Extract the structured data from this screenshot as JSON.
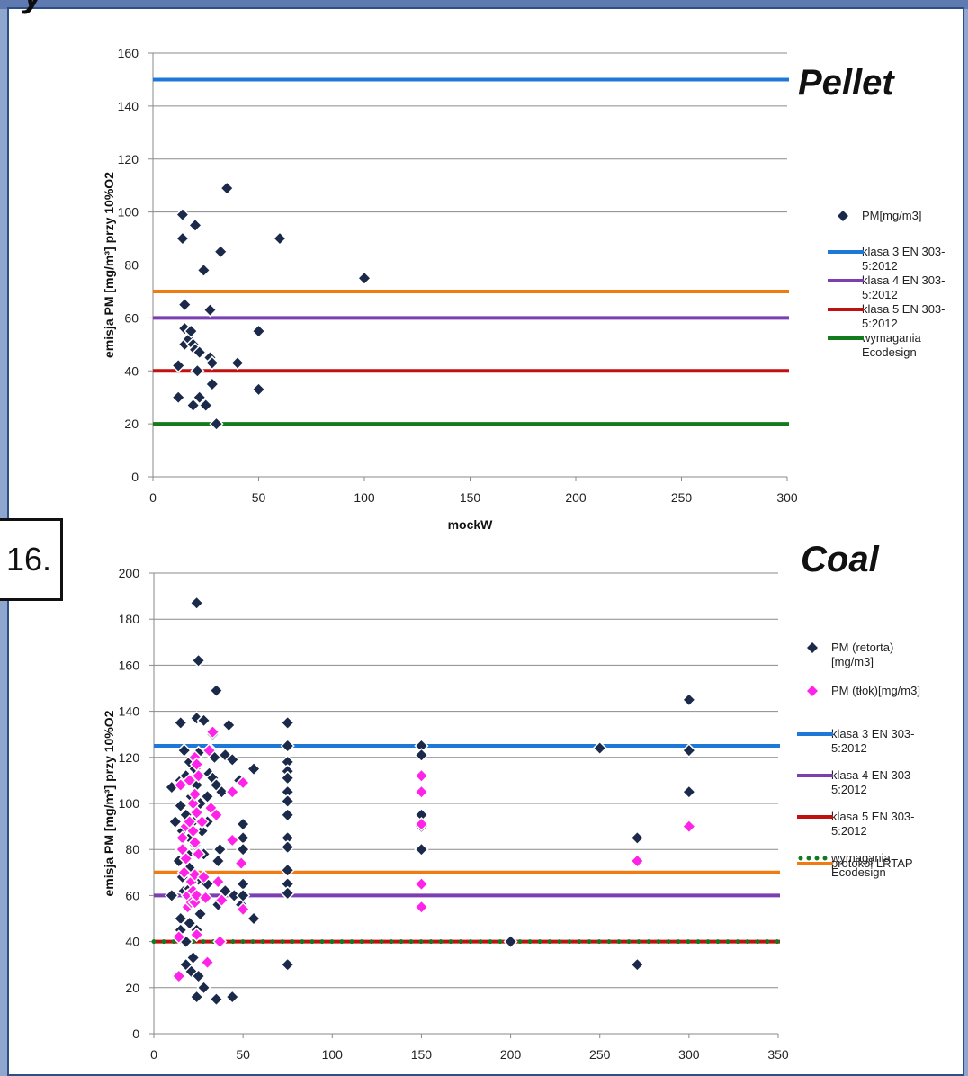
{
  "header": {
    "corner_glyph": "y"
  },
  "slide_number": "16.",
  "chart_data": [
    {
      "type": "scatter",
      "label": "Pellet",
      "title": "",
      "xlabel": "mockW",
      "ylabel": "emisja PM [mg/m³] przy 10%O2",
      "xlim": [
        0,
        300
      ],
      "ylim": [
        0,
        160
      ],
      "xticks": [
        0,
        50,
        100,
        150,
        200,
        250,
        300
      ],
      "yticks": [
        0,
        20,
        40,
        60,
        80,
        100,
        120,
        140,
        160
      ],
      "grid": "horizontal",
      "legend_position": "right",
      "series": [
        {
          "name": "PM[mg/m3]",
          "kind": "points",
          "color": "#1b2a4a",
          "points": [
            [
              12,
              30
            ],
            [
              12,
              42
            ],
            [
              14,
              99
            ],
            [
              14,
              90
            ],
            [
              15,
              56
            ],
            [
              15,
              65
            ],
            [
              15,
              50
            ],
            [
              17,
              52
            ],
            [
              18,
              55
            ],
            [
              19,
              27
            ],
            [
              19,
              50
            ],
            [
              20,
              95
            ],
            [
              20,
              48
            ],
            [
              21,
              40
            ],
            [
              22,
              47
            ],
            [
              22,
              30
            ],
            [
              24,
              78
            ],
            [
              25,
              27
            ],
            [
              27,
              63
            ],
            [
              27,
              45
            ],
            [
              28,
              43
            ],
            [
              28,
              35
            ],
            [
              30,
              20
            ],
            [
              32,
              85
            ],
            [
              35,
              109
            ],
            [
              40,
              43
            ],
            [
              50,
              55
            ],
            [
              50,
              33
            ],
            [
              60,
              90
            ],
            [
              100,
              75
            ]
          ]
        },
        {
          "name": "klasa 3 EN 303-5:2012",
          "kind": "hline",
          "y": 150,
          "color": "#1e78d7"
        },
        {
          "name": "klasa 4 EN 303-5:2012",
          "kind": "hline",
          "y": 60,
          "color": "#7b3fb2"
        },
        {
          "name": "klasa 5 EN 303-5:2012",
          "kind": "hline",
          "y": 40,
          "color": "#c11010"
        },
        {
          "name": "wymagania Ecodesign",
          "kind": "hline",
          "y": 20,
          "color": "#137a1e"
        },
        {
          "name": "",
          "kind": "hline",
          "y": 70,
          "color": "#f07b12"
        }
      ]
    },
    {
      "type": "scatter",
      "label": "Coal",
      "title": "",
      "xlabel": "mockW",
      "ylabel": "emisja PM [mg/m³] przy 10%O2",
      "xlim": [
        0,
        350
      ],
      "ylim": [
        0,
        200
      ],
      "xticks": [
        0,
        50,
        100,
        150,
        200,
        250,
        300,
        350
      ],
      "yticks": [
        0,
        20,
        40,
        60,
        80,
        100,
        120,
        140,
        160,
        180,
        200
      ],
      "grid": "horizontal",
      "legend_position": "right",
      "series": [
        {
          "name": "PM (retorta) [mg/m3]",
          "kind": "points",
          "color": "#1b2a4a",
          "points": [
            [
              10,
              107
            ],
            [
              10,
              60
            ],
            [
              12,
              92
            ],
            [
              14,
              75
            ],
            [
              15,
              135
            ],
            [
              15,
              110
            ],
            [
              15,
              99
            ],
            [
              15,
              50
            ],
            [
              15,
              45
            ],
            [
              16,
              88
            ],
            [
              16,
              68
            ],
            [
              17,
              123
            ],
            [
              17,
              62
            ],
            [
              18,
              112
            ],
            [
              18,
              95
            ],
            [
              18,
              40
            ],
            [
              18,
              30
            ],
            [
              19,
              78
            ],
            [
              19,
              55
            ],
            [
              20,
              118
            ],
            [
              20,
              85
            ],
            [
              20,
              72
            ],
            [
              20,
              63
            ],
            [
              20,
              48
            ],
            [
              21,
              103
            ],
            [
              21,
              27
            ],
            [
              22,
              92
            ],
            [
              22,
              58
            ],
            [
              22,
              33
            ],
            [
              23,
              115
            ],
            [
              23,
              82
            ],
            [
              24,
              187
            ],
            [
              24,
              137
            ],
            [
              24,
              108
            ],
            [
              24,
              45
            ],
            [
              24,
              16
            ],
            [
              25,
              162
            ],
            [
              25,
              122
            ],
            [
              25,
              67
            ],
            [
              25,
              25
            ],
            [
              26,
              100
            ],
            [
              26,
              52
            ],
            [
              27,
              88
            ],
            [
              28,
              78
            ],
            [
              28,
              136
            ],
            [
              28,
              20
            ],
            [
              30,
              92
            ],
            [
              30,
              65
            ],
            [
              30,
              103
            ],
            [
              31,
              113
            ],
            [
              32,
              123
            ],
            [
              33,
              130
            ],
            [
              33,
              111
            ],
            [
              34,
              96
            ],
            [
              34,
              120
            ],
            [
              35,
              149
            ],
            [
              35,
              108
            ],
            [
              35,
              15
            ],
            [
              36,
              56
            ],
            [
              36,
              75
            ],
            [
              37,
              80
            ],
            [
              38,
              105
            ],
            [
              40,
              121
            ],
            [
              40,
              62
            ],
            [
              42,
              134
            ],
            [
              44,
              119
            ],
            [
              44,
              16
            ],
            [
              45,
              60
            ],
            [
              48,
              110
            ],
            [
              49,
              56
            ],
            [
              50,
              91
            ],
            [
              50,
              85
            ],
            [
              50,
              80
            ],
            [
              50,
              65
            ],
            [
              50,
              60
            ],
            [
              56,
              115
            ],
            [
              56,
              50
            ],
            [
              75,
              135
            ],
            [
              75,
              125
            ],
            [
              75,
              118
            ],
            [
              75,
              114
            ],
            [
              75,
              111
            ],
            [
              75,
              105
            ],
            [
              75,
              101
            ],
            [
              75,
              95
            ],
            [
              75,
              85
            ],
            [
              75,
              81
            ],
            [
              75,
              71
            ],
            [
              75,
              65
            ],
            [
              75,
              61
            ],
            [
              75,
              30
            ],
            [
              150,
              125
            ],
            [
              150,
              121
            ],
            [
              150,
              95
            ],
            [
              150,
              90
            ],
            [
              150,
              80
            ],
            [
              200,
              40
            ],
            [
              250,
              124
            ],
            [
              271,
              85
            ],
            [
              271,
              30
            ],
            [
              300,
              145
            ],
            [
              300,
              123
            ],
            [
              300,
              105
            ]
          ]
        },
        {
          "name": "PM (tłok)[mg/m3]",
          "kind": "points",
          "color": "#ff22e8",
          "points": [
            [
              14,
              25
            ],
            [
              14,
              42
            ],
            [
              15,
              108
            ],
            [
              16,
              85
            ],
            [
              16,
              80
            ],
            [
              17,
              70
            ],
            [
              18,
              90
            ],
            [
              18,
              76
            ],
            [
              19,
              60
            ],
            [
              19,
              55
            ],
            [
              20,
              110
            ],
            [
              20,
              92
            ],
            [
              21,
              66
            ],
            [
              21,
              57
            ],
            [
              22,
              100
            ],
            [
              22,
              88
            ],
            [
              22,
              62
            ],
            [
              23,
              120
            ],
            [
              23,
              104
            ],
            [
              23,
              83
            ],
            [
              23,
              69
            ],
            [
              23,
              57
            ],
            [
              24,
              96
            ],
            [
              24,
              117
            ],
            [
              24,
              60
            ],
            [
              24,
              43
            ],
            [
              25,
              78
            ],
            [
              25,
              112
            ],
            [
              27,
              92
            ],
            [
              28,
              68
            ],
            [
              29,
              59
            ],
            [
              30,
              31
            ],
            [
              31,
              123
            ],
            [
              32,
              98
            ],
            [
              33,
              131
            ],
            [
              35,
              95
            ],
            [
              36,
              66
            ],
            [
              37,
              40
            ],
            [
              38,
              58
            ],
            [
              44,
              84
            ],
            [
              44,
              105
            ],
            [
              49,
              74
            ],
            [
              50,
              109
            ],
            [
              50,
              54
            ],
            [
              150,
              112
            ],
            [
              150,
              105
            ],
            [
              150,
              91
            ],
            [
              150,
              65
            ],
            [
              150,
              55
            ],
            [
              271,
              75
            ],
            [
              300,
              90
            ]
          ]
        },
        {
          "name": "klasa 3 EN 303-5:2012",
          "kind": "hline",
          "y": 125,
          "color": "#1e78d7"
        },
        {
          "name": "klasa 4 EN 303-5:2012",
          "kind": "hline",
          "y": 60,
          "color": "#7b3fb2"
        },
        {
          "name": "klasa 5 EN 303-5:2012",
          "kind": "hline",
          "y": 40,
          "color": "#c11010"
        },
        {
          "name": "wymagania Ecodesign",
          "kind": "dotted-hline",
          "y": 40,
          "color": "#137a1e"
        },
        {
          "name": "protokół LRTAP",
          "kind": "hline",
          "y": 70,
          "color": "#f07b12"
        }
      ]
    }
  ]
}
